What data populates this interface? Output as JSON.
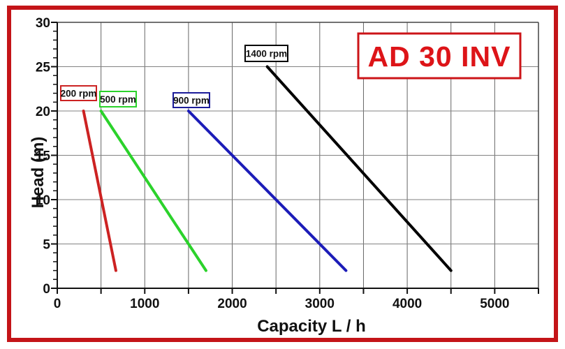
{
  "colors": {
    "frame_red": "#c41418",
    "badge_border_red": "#cc1418",
    "badge_text_red": "#dd1418",
    "grid_vertical": "#666666",
    "grid_horizontal": "#828282",
    "axis_dark": "#111111",
    "frame_inner": "#444444",
    "plot_background": "#ffffff"
  },
  "chart_data": {
    "type": "line",
    "title": "AD 30 INV",
    "xlabel": "Capacity  L / h",
    "ylabel": "Head (m)",
    "xlim": [
      0,
      5500
    ],
    "ylim": [
      0,
      30
    ],
    "x_tick_labels": [
      0,
      1000,
      2000,
      3000,
      4000,
      5000
    ],
    "x_grid_step": 500,
    "y_tick_labels": [
      0,
      5,
      10,
      15,
      20,
      25,
      30
    ],
    "y_major_step": 5,
    "y_minor_step": 1,
    "grid": true,
    "legend_position": "labels-on-curves",
    "series": [
      {
        "name": "200 rpm",
        "color": "#cc2222",
        "label_border": "#cc2222",
        "points": [
          [
            300,
            20
          ],
          [
            670,
            2
          ]
        ]
      },
      {
        "name": "500 rpm",
        "color": "#2bd22b",
        "label_border": "#2bd22b",
        "points": [
          [
            500,
            20
          ],
          [
            1700,
            2
          ]
        ]
      },
      {
        "name": "900 rpm",
        "color": "#1c1cb8",
        "label_border": "#1c1c99",
        "points": [
          [
            1500,
            20
          ],
          [
            3300,
            2
          ]
        ]
      },
      {
        "name": "1400 rpm",
        "color": "#000000",
        "label_border": "#000000",
        "points": [
          [
            2400,
            25
          ],
          [
            4500,
            2
          ]
        ]
      }
    ]
  }
}
